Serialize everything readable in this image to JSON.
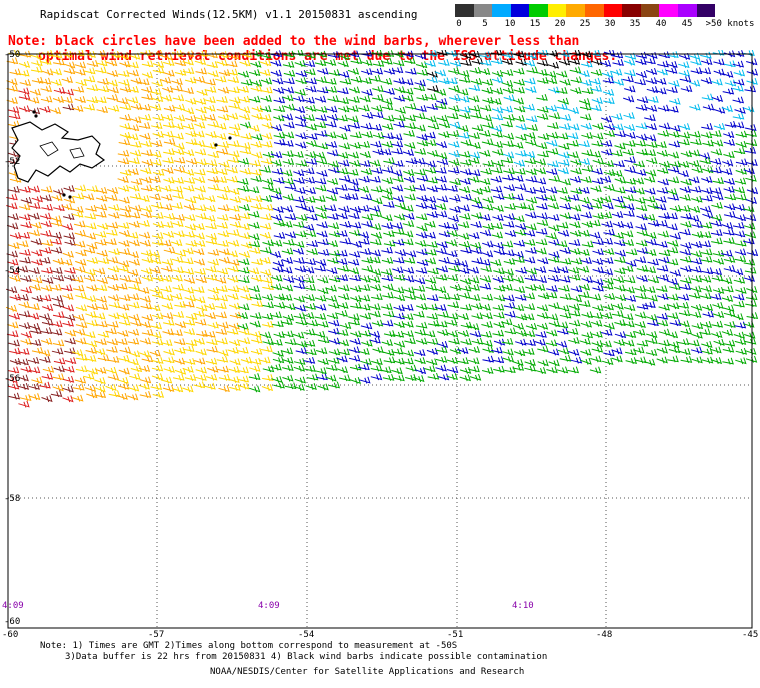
{
  "title": "Rapidscat Corrected Winds(12.5KM) v1.1 20150831 ascending",
  "legend": {
    "colors": [
      "#303030",
      "#888888",
      "#00aaff",
      "#0000dd",
      "#00cc00",
      "#ffee00",
      "#ffaa00",
      "#ff6600",
      "#ff0000",
      "#880000",
      "#8b4513",
      "#ff00ff",
      "#aa00ff",
      "#330066"
    ],
    "labels": [
      "0",
      "5",
      "10",
      "15",
      "20",
      "25",
      "30",
      "35",
      "40",
      "45",
      ">50 knots"
    ]
  },
  "note": {
    "line1": "Note: black circles have been added to the wind barbs, wherever less than",
    "line2": "optimal wind retrieval conditions are met due to the ISS attitude changes."
  },
  "map": {
    "lat_labels": [
      "-50",
      "-52",
      "-54",
      "-56",
      "-58",
      "-60"
    ],
    "lon_labels": [
      "-60",
      "-57",
      "-54",
      "-51",
      "-48",
      "-45"
    ],
    "time_labels": [
      "4:09",
      "4:09",
      "4:10"
    ],
    "speed_colors": {
      "yellow": "#ffd700",
      "orange": "#ffa500",
      "red": "#dd2020",
      "dark_red": "#882222",
      "green": "#00aa00",
      "blue": "#0000cc",
      "cyan": "#00bbee",
      "black": "#000000"
    }
  },
  "footer": {
    "line1": "Note: 1) Times are GMT 2)Times along bottom correspond to measurement at -50S",
    "line2": "3)Data buffer is 22 hrs from 20150831 4) Black wind barbs indicate possible contamination",
    "line3": "NOAA/NESDIS/Center for Satellite Applications and Research"
  }
}
